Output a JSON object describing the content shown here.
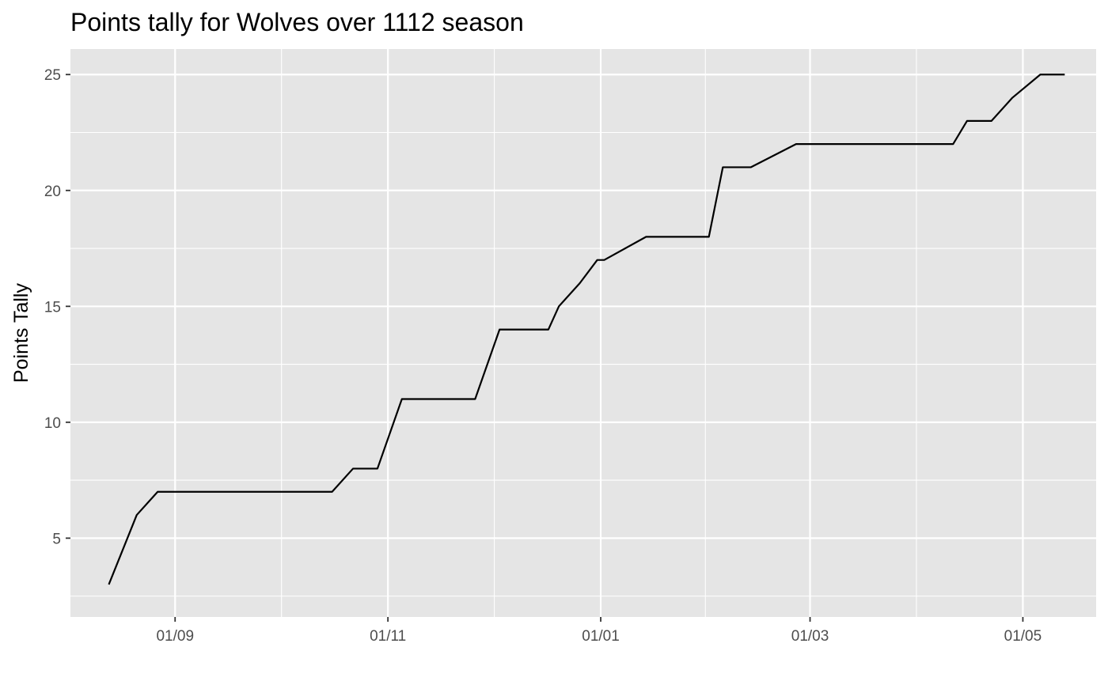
{
  "chart_data": {
    "type": "line",
    "title": "Points tally for Wolves over 1112 season",
    "xlabel": "",
    "ylabel": "Points Tally",
    "x_axis_type": "date",
    "xlim": [
      "2011-08-02",
      "2012-05-22"
    ],
    "ylim": [
      1.6,
      26.1
    ],
    "x_ticks": [
      {
        "date": "2011-09-01",
        "label": "01/09"
      },
      {
        "date": "2011-11-01",
        "label": "01/11"
      },
      {
        "date": "2012-01-01",
        "label": "01/01"
      },
      {
        "date": "2012-03-01",
        "label": "01/03"
      },
      {
        "date": "2012-05-01",
        "label": "01/05"
      }
    ],
    "y_ticks": [
      5,
      10,
      15,
      20,
      25
    ],
    "grid": true,
    "legend": "none",
    "colors": {
      "panel_background": "#e5e5e5",
      "grid": "#ffffff",
      "line": "#000000",
      "tick_text": "#4d4d4d"
    },
    "series": [
      {
        "x": [
          "2011-08-13",
          "2011-08-21",
          "2011-08-27",
          "2011-10-16",
          "2011-10-22",
          "2011-10-29",
          "2011-11-05",
          "2011-11-26",
          "2011-12-03",
          "2011-12-17",
          "2011-12-20",
          "2011-12-26",
          "2011-12-31",
          "2012-01-02",
          "2012-01-14",
          "2012-02-01",
          "2012-02-05",
          "2012-02-13",
          "2012-02-26",
          "2012-04-11",
          "2012-04-15",
          "2012-04-22",
          "2012-04-28",
          "2012-05-06",
          "2012-05-13"
        ],
        "y": [
          3,
          6,
          7,
          7,
          8,
          8,
          11,
          11,
          14,
          14,
          15,
          16,
          17,
          17,
          18,
          18,
          21,
          21,
          22,
          22,
          23,
          23,
          24,
          25,
          25
        ]
      }
    ]
  }
}
